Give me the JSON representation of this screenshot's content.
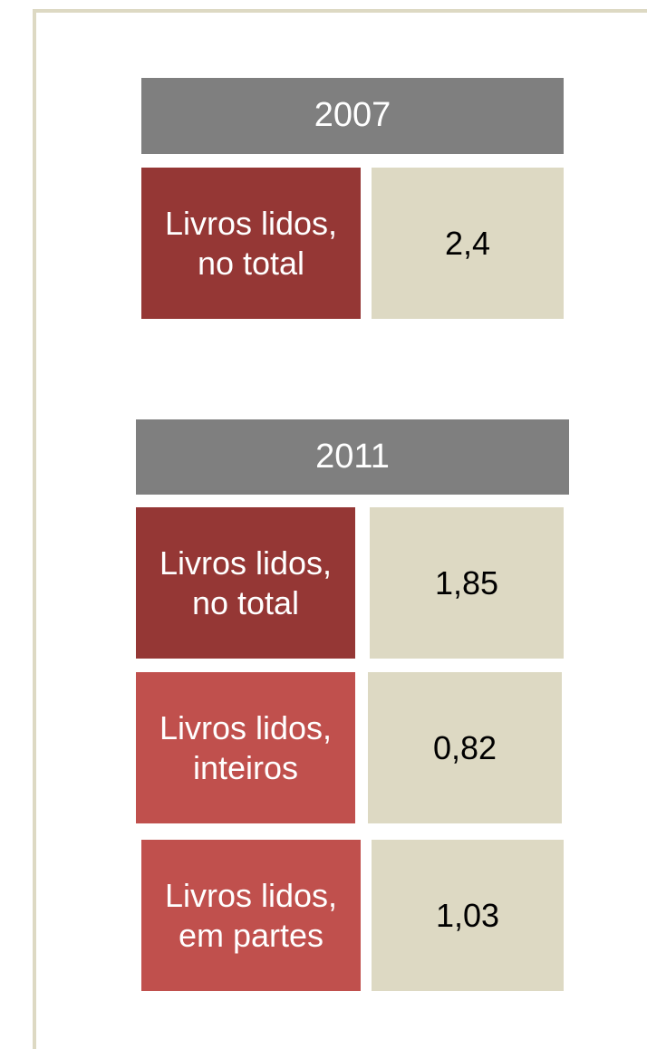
{
  "sections": [
    {
      "year": "2007",
      "rows": [
        {
          "label": [
            "Livros lidos,",
            "no total"
          ],
          "value": "2,4"
        }
      ]
    },
    {
      "year": "2011",
      "rows": [
        {
          "label": [
            "Livros lidos,",
            "no total"
          ],
          "value": "1,85"
        },
        {
          "label": [
            "Livros lidos,",
            "inteiros"
          ],
          "value": "0,82"
        },
        {
          "label": [
            "Livros lidos,",
            "em partes"
          ],
          "value": "1,03"
        }
      ]
    }
  ]
}
